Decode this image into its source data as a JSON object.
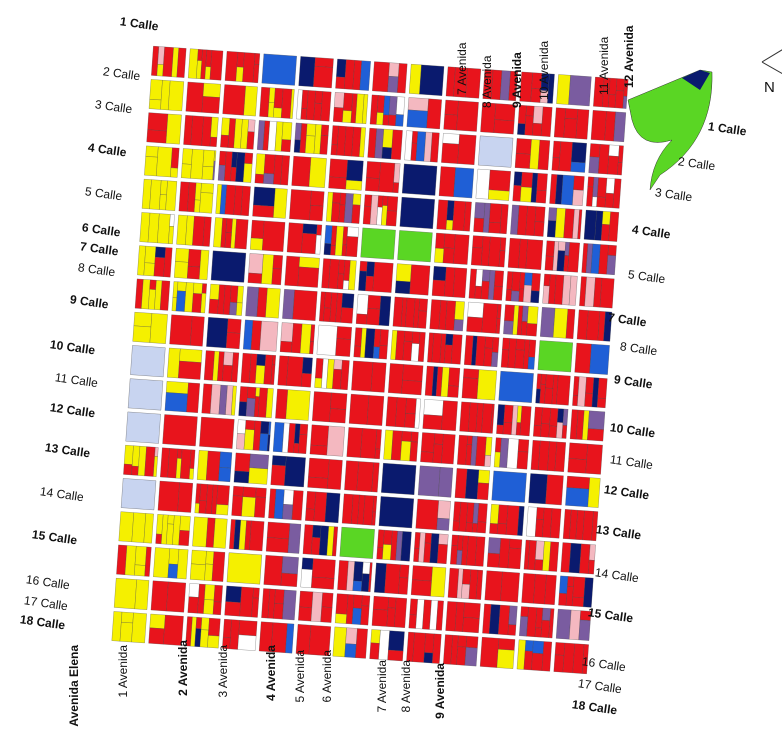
{
  "labels": {
    "left_calles": [
      {
        "text": "1 Calle",
        "bold": true
      },
      {
        "text": "2 Calle",
        "bold": false
      },
      {
        "text": "3 Calle",
        "bold": false
      },
      {
        "text": "4 Calle",
        "bold": true
      },
      {
        "text": "5 Calle",
        "bold": false
      },
      {
        "text": "6 Calle",
        "bold": true
      },
      {
        "text": "7 Calle",
        "bold": true
      },
      {
        "text": "8 Calle",
        "bold": false
      },
      {
        "text": "9 Calle",
        "bold": true
      },
      {
        "text": "10 Calle",
        "bold": true
      },
      {
        "text": "11 Calle",
        "bold": false
      },
      {
        "text": "12 Calle",
        "bold": true
      },
      {
        "text": "13 Calle",
        "bold": true
      },
      {
        "text": "14 Calle",
        "bold": false
      },
      {
        "text": "15 Calle",
        "bold": true
      },
      {
        "text": "16 Calle",
        "bold": false
      },
      {
        "text": "17 Calle",
        "bold": false
      },
      {
        "text": "18 Calle",
        "bold": true
      }
    ],
    "right_calles": [
      {
        "text": "1 Calle",
        "bold": true
      },
      {
        "text": "2 Calle",
        "bold": false
      },
      {
        "text": "3 Calle",
        "bold": false
      },
      {
        "text": "4 Calle",
        "bold": true
      },
      {
        "text": "5 Calle",
        "bold": false
      },
      {
        "text": "7 Calle",
        "bold": true
      },
      {
        "text": "8 Calle",
        "bold": false
      },
      {
        "text": "9 Calle",
        "bold": true
      },
      {
        "text": "10 Calle",
        "bold": true
      },
      {
        "text": "11 Calle",
        "bold": false
      },
      {
        "text": "12 Calle",
        "bold": true
      },
      {
        "text": "13 Calle",
        "bold": true
      },
      {
        "text": "14 Calle",
        "bold": false
      },
      {
        "text": "15 Calle",
        "bold": true
      },
      {
        "text": "16 Calle",
        "bold": false
      },
      {
        "text": "17 Calle",
        "bold": false
      },
      {
        "text": "18 Calle",
        "bold": true
      }
    ],
    "top_avenidas": [
      {
        "text": "7 Avenida",
        "bold": false
      },
      {
        "text": "8 Avenida",
        "bold": false
      },
      {
        "text": "9 Avenida",
        "bold": true
      },
      {
        "text": "10 Avenida",
        "bold": false
      },
      {
        "text": "11 Avenida",
        "bold": false
      },
      {
        "text": "12 Avenida",
        "bold": true
      }
    ],
    "bottom_avenidas": [
      {
        "text": "Avenida Elena",
        "bold": true
      },
      {
        "text": "1 Avenida",
        "bold": false
      },
      {
        "text": "2 Avenida",
        "bold": true
      },
      {
        "text": "3 Avenida",
        "bold": false
      },
      {
        "text": "4 Avenida",
        "bold": true
      },
      {
        "text": "5 Avenida",
        "bold": false
      },
      {
        "text": "6 Avenida",
        "bold": false
      },
      {
        "text": "7 Avenida",
        "bold": false
      },
      {
        "text": "8 Avenida",
        "bold": false
      },
      {
        "text": "9 Avenida",
        "bold": true
      }
    ]
  },
  "north": "N"
}
